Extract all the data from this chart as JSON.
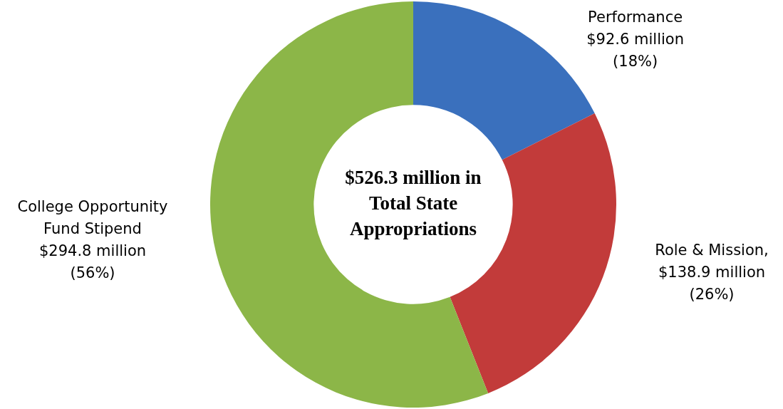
{
  "chart_data": {
    "type": "donut",
    "categories": [
      "Performance",
      "Role & Mission",
      "College Opportunity Fund Stipend"
    ],
    "values": [
      92.6,
      138.9,
      294.8
    ],
    "colors": [
      "#3a70bd",
      "#c23b3a",
      "#8cb648"
    ],
    "value_labels": [
      "\n$92.6 million",
      ",\n$138.9 million",
      "\n$294.8 million"
    ],
    "annotations": [
      "$526.3 million in Total State Appropriations",
      "(18%)",
      "(26%)",
      "(56%)"
    ],
    "legend": false
  }
}
